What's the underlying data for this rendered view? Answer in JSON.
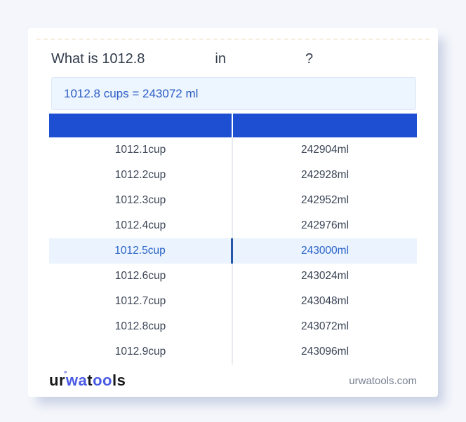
{
  "page": {
    "background_color": "#f4f6fb",
    "card_color": "#ffffff"
  },
  "title": {
    "prefix": "What is 1012.8",
    "connector": "in",
    "suffix": "?"
  },
  "result": {
    "text": "1012.8 cups = 243072 ml",
    "text_color": "#2b5cc5",
    "background_color": "#edf5fe"
  },
  "table": {
    "header": {
      "from_label": "",
      "to_label": "",
      "background_color": "#1e4fd2"
    },
    "highlight": {
      "background_color": "#eaf3fe",
      "text_color": "#2a63c8",
      "divider_color": "#2456a8"
    },
    "rows": [
      {
        "cup": "1012.1cup",
        "ml": "242904ml",
        "highlighted": false
      },
      {
        "cup": "1012.2cup",
        "ml": "242928ml",
        "highlighted": false
      },
      {
        "cup": "1012.3cup",
        "ml": "242952ml",
        "highlighted": false
      },
      {
        "cup": "1012.4cup",
        "ml": "242976ml",
        "highlighted": false
      },
      {
        "cup": "1012.5cup",
        "ml": "243000ml",
        "highlighted": true
      },
      {
        "cup": "1012.6cup",
        "ml": "243024ml",
        "highlighted": false
      },
      {
        "cup": "1012.7cup",
        "ml": "243048ml",
        "highlighted": false
      },
      {
        "cup": "1012.8cup",
        "ml": "243072ml",
        "highlighted": false
      },
      {
        "cup": "1012.9cup",
        "ml": "243096ml",
        "highlighted": false
      }
    ]
  },
  "footer": {
    "logo": {
      "part1": "ur",
      "degree": "°",
      "part2": "wa",
      "part3": "t",
      "part4": "oo",
      "part5": "ls",
      "blue_color": "#4a5be4"
    },
    "domain": "urwatools.com"
  }
}
